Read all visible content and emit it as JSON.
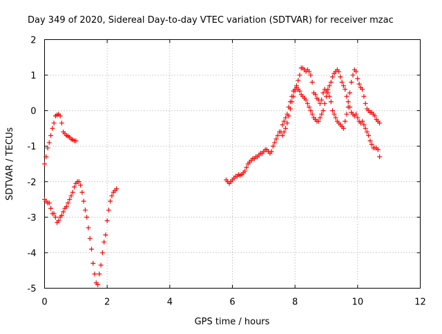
{
  "chart_data": {
    "type": "scatter",
    "title": "Day 349 of 2020, Sidereal Day-to-day VTEC variation (SDTVAR) for receiver mzac",
    "xlabel": "GPS time / hours",
    "ylabel": "SDTVAR / TECUs",
    "xlim": [
      0,
      12
    ],
    "ylim": [
      -5,
      2
    ],
    "xticks": [
      "0",
      "2",
      "4",
      "6",
      "8",
      "10",
      "12"
    ],
    "yticks": [
      "-5",
      "-4",
      "-3",
      "-2",
      "-1",
      "0",
      "1",
      "2"
    ],
    "grid": true,
    "marker": "plus",
    "color": "#ff0000",
    "series": [
      {
        "x": [
          0.0,
          0.05,
          0.1,
          0.15,
          0.2,
          0.25,
          0.3,
          0.35,
          0.4,
          0.45,
          0.5,
          0.55,
          0.6,
          0.65,
          0.7,
          0.75,
          0.8,
          0.85,
          0.9,
          0.95,
          1.0
        ],
        "y": [
          -1.5,
          -1.3,
          -1.05,
          -0.9,
          -0.7,
          -0.5,
          -0.35,
          -0.15,
          -0.12,
          -0.1,
          -0.15,
          -0.35,
          -0.6,
          -0.65,
          -0.7,
          -0.72,
          -0.75,
          -0.8,
          -0.82,
          -0.85,
          -0.85
        ]
      },
      {
        "x": [
          0.0,
          0.05,
          0.1,
          0.15,
          0.2,
          0.25,
          0.3,
          0.35,
          0.4,
          0.45,
          0.5,
          0.55,
          0.6,
          0.65,
          0.7,
          0.75,
          0.8,
          0.85,
          0.9,
          0.95,
          1.0,
          1.05,
          1.1,
          1.15,
          1.2,
          1.25,
          1.3,
          1.35,
          1.4,
          1.45,
          1.5,
          1.55,
          1.6,
          1.65,
          1.7,
          1.75,
          1.8,
          1.85,
          1.9,
          1.95,
          2.0,
          2.05,
          2.1,
          2.15,
          2.2,
          2.25,
          2.3
        ],
        "y": [
          -2.5,
          -2.55,
          -2.6,
          -2.6,
          -2.75,
          -2.9,
          -2.9,
          -3.0,
          -3.15,
          -3.1,
          -3.0,
          -2.95,
          -2.85,
          -2.75,
          -2.7,
          -2.6,
          -2.5,
          -2.4,
          -2.3,
          -2.15,
          -2.05,
          -2.0,
          -2.0,
          -2.1,
          -2.3,
          -2.55,
          -2.8,
          -3.0,
          -3.3,
          -3.6,
          -3.9,
          -4.3,
          -4.6,
          -4.85,
          -4.9,
          -4.6,
          -4.35,
          -4.0,
          -3.7,
          -3.5,
          -3.1,
          -2.8,
          -2.55,
          -2.4,
          -2.3,
          -2.25,
          -2.2
        ]
      },
      {
        "x": [
          5.8,
          5.85,
          5.9,
          5.95,
          6.0,
          6.05,
          6.1,
          6.15,
          6.2,
          6.25,
          6.3,
          6.35,
          6.4,
          6.45,
          6.5,
          6.55,
          6.6,
          6.65,
          6.7,
          6.75,
          6.8,
          6.85,
          6.9,
          6.95,
          7.0,
          7.05,
          7.1,
          7.15,
          7.2,
          7.25,
          7.3,
          7.35,
          7.4,
          7.45,
          7.5,
          7.55,
          7.6,
          7.65,
          7.7,
          7.75,
          7.8,
          7.85,
          7.9,
          7.95,
          8.0,
          8.05,
          8.1,
          8.15,
          8.2,
          8.25,
          8.3,
          8.35,
          8.4,
          8.45,
          8.5,
          8.55,
          8.6,
          8.65,
          8.7,
          8.75,
          8.8,
          8.85,
          8.9,
          8.95,
          9.0,
          9.05,
          9.1,
          9.15,
          9.2,
          9.25,
          9.3,
          9.35,
          9.4,
          9.45,
          9.5,
          9.55,
          9.6,
          9.65,
          9.7,
          9.75,
          9.8,
          9.85,
          9.9,
          9.95,
          10.0,
          10.05,
          10.1,
          10.15,
          10.2,
          10.25,
          10.3,
          10.35,
          10.4,
          10.45,
          10.5,
          10.55,
          10.6,
          10.65,
          10.7
        ],
        "y": [
          -1.95,
          -2.0,
          -2.05,
          -2.0,
          -1.95,
          -1.9,
          -1.85,
          -1.85,
          -1.8,
          -1.82,
          -1.8,
          -1.75,
          -1.7,
          -1.6,
          -1.5,
          -1.45,
          -1.4,
          -1.35,
          -1.35,
          -1.3,
          -1.3,
          -1.25,
          -1.2,
          -1.2,
          -1.15,
          -1.1,
          -1.1,
          -1.15,
          -1.2,
          -1.15,
          -1.0,
          -0.9,
          -0.8,
          -0.7,
          -0.6,
          -0.6,
          -0.4,
          -0.3,
          -0.2,
          -0.1,
          0.1,
          0.25,
          0.4,
          0.55,
          0.6,
          0.65,
          0.6,
          0.55,
          0.45,
          0.4,
          0.35,
          0.3,
          0.2,
          0.1,
          0.0,
          -0.1,
          -0.2,
          -0.25,
          -0.3,
          -0.3,
          -0.2,
          -0.1,
          0.0,
          0.2,
          0.4,
          0.6,
          0.7,
          0.8,
          0.95,
          1.05,
          1.1,
          1.15,
          1.1,
          0.95,
          0.8,
          0.7,
          0.6,
          0.4,
          0.25,
          0.1,
          -0.05,
          -0.1,
          -0.15,
          -0.1,
          -0.2,
          -0.3,
          -0.35,
          -0.3,
          -0.4,
          -0.5,
          -0.6,
          -0.7,
          -0.85,
          -0.95,
          -1.05,
          -1.05,
          -1.05,
          -1.1,
          -1.3
        ]
      },
      {
        "x": [
          7.6,
          7.65,
          7.7,
          7.75,
          7.8,
          7.85,
          7.9,
          7.95,
          8.0,
          8.05,
          8.1,
          8.15,
          8.2,
          8.25,
          8.3,
          8.35,
          8.4,
          8.45,
          8.5,
          8.55,
          8.6,
          8.65,
          8.7,
          8.75,
          8.8,
          8.85,
          8.9,
          8.95,
          9.0,
          9.05,
          9.1,
          9.15,
          9.2,
          9.25,
          9.3,
          9.35,
          9.4,
          9.45,
          9.5,
          9.55,
          9.6,
          9.65,
          9.7,
          9.75,
          9.8,
          9.85,
          9.9,
          9.95,
          10.0,
          10.05,
          10.1,
          10.15,
          10.2,
          10.25,
          10.3,
          10.35,
          10.4,
          10.45,
          10.5,
          10.55,
          10.6,
          10.65,
          10.7
        ],
        "y": [
          -0.7,
          -0.6,
          -0.5,
          -0.35,
          -0.15,
          0.05,
          0.25,
          0.4,
          0.55,
          0.7,
          0.85,
          1.0,
          1.2,
          1.2,
          1.15,
          1.1,
          1.15,
          1.1,
          1.0,
          0.8,
          0.5,
          0.45,
          0.35,
          0.3,
          0.2,
          0.3,
          0.5,
          0.6,
          0.55,
          0.5,
          0.4,
          0.25,
          0.0,
          -0.1,
          -0.2,
          -0.3,
          -0.35,
          -0.4,
          -0.45,
          -0.5,
          -0.3,
          -0.1,
          0.1,
          0.5,
          0.8,
          1.0,
          1.15,
          1.1,
          0.9,
          0.75,
          0.65,
          0.6,
          0.4,
          0.2,
          0.05,
          0.0,
          -0.05,
          -0.05,
          -0.1,
          -0.15,
          -0.25,
          -0.3,
          -0.35
        ]
      }
    ]
  }
}
